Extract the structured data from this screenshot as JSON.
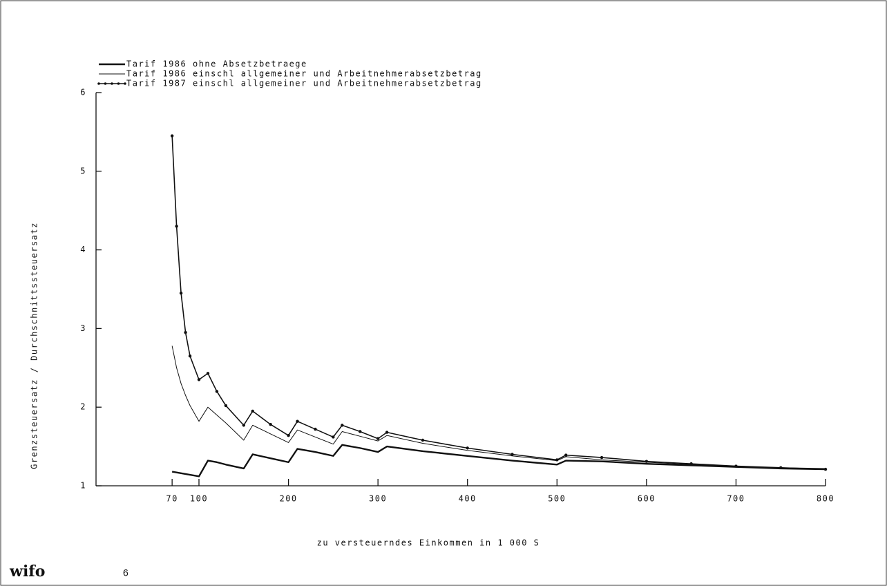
{
  "chart_data": {
    "type": "line",
    "x_label": "zu versteuerndes Einkommen in 1 000 S",
    "y_label": "Grenzsteuersatz / Durchschnittssteuersatz",
    "x": [
      70,
      75,
      80,
      85,
      90,
      100,
      110,
      120,
      130,
      150,
      160,
      180,
      200,
      210,
      230,
      250,
      260,
      280,
      300,
      310,
      350,
      400,
      450,
      500,
      510,
      550,
      600,
      650,
      700,
      750,
      800
    ],
    "series": [
      {
        "name": "Tarif 1986 ohne Absetzbetraege",
        "color": "#111111",
        "width": 2.4,
        "markers": false,
        "values": [
          1.18,
          1.17,
          1.16,
          1.15,
          1.14,
          1.12,
          1.32,
          1.3,
          1.27,
          1.22,
          1.4,
          1.35,
          1.3,
          1.47,
          1.43,
          1.38,
          1.52,
          1.48,
          1.43,
          1.5,
          1.44,
          1.38,
          1.32,
          1.27,
          1.32,
          1.31,
          1.28,
          1.26,
          1.24,
          1.22,
          1.21
        ]
      },
      {
        "name": "Tarif 1986 einschl allgemeiner und Arbeitnehmerabsetzbetrag",
        "color": "#111111",
        "width": 1,
        "markers": false,
        "values": [
          2.78,
          2.5,
          2.3,
          2.15,
          2.02,
          1.82,
          2.0,
          1.9,
          1.8,
          1.58,
          1.77,
          1.66,
          1.55,
          1.71,
          1.62,
          1.53,
          1.69,
          1.63,
          1.57,
          1.64,
          1.54,
          1.45,
          1.38,
          1.32,
          1.37,
          1.33,
          1.3,
          1.27,
          1.25,
          1.23,
          1.22
        ]
      },
      {
        "name": "Tarif 1987 einschl allgemeiner und Arbeitnehmerabsetzbetrag",
        "color": "#111111",
        "width": 1.6,
        "markers": true,
        "values": [
          5.45,
          4.3,
          3.45,
          2.95,
          2.65,
          2.35,
          2.43,
          2.2,
          2.02,
          1.77,
          1.95,
          1.78,
          1.64,
          1.82,
          1.72,
          1.62,
          1.77,
          1.69,
          1.6,
          1.68,
          1.58,
          1.48,
          1.4,
          1.33,
          1.39,
          1.36,
          1.31,
          1.28,
          1.25,
          1.23,
          1.21
        ]
      }
    ],
    "xlim": [
      -15,
      800
    ],
    "xticks": [
      70,
      100,
      200,
      300,
      400,
      500,
      600,
      700,
      800
    ],
    "ylim": [
      1,
      6
    ],
    "yticks": [
      1,
      2,
      3,
      4,
      5,
      6
    ],
    "grid": false,
    "legend": "top-left"
  },
  "footer": {
    "logo": "wifo",
    "page": "6"
  }
}
